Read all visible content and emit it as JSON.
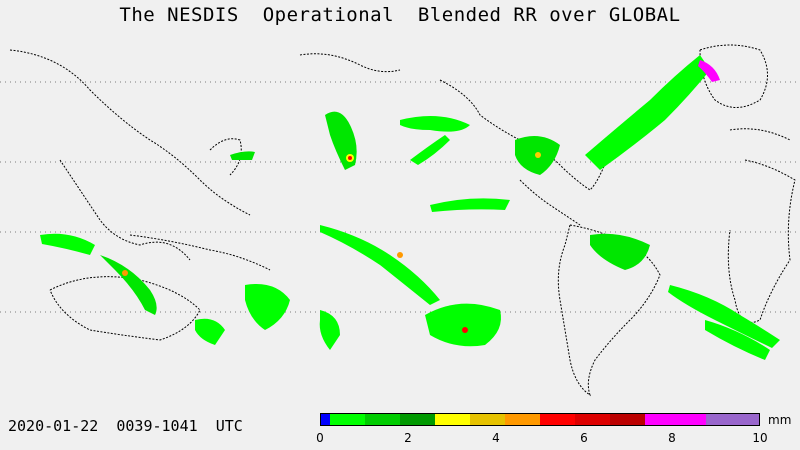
{
  "title": "The NESDIS  Operational  Blended RR over GLOBAL",
  "timestamp": "2020-01-22  0039-1041  UTC",
  "legend": {
    "unit": "mm",
    "ticks": [
      "0",
      "2",
      "4",
      "6",
      "8",
      "10"
    ],
    "tick_values": [
      0,
      2,
      4,
      6,
      8,
      10
    ],
    "range": [
      0,
      10
    ],
    "colors": [
      "#0000ff",
      "#00ff00",
      "#00cc00",
      "#009900",
      "#ffff00",
      "#e6c200",
      "#ff9900",
      "#ff0000",
      "#dd0000",
      "#bb0000",
      "#ff00ff",
      "#9966cc"
    ],
    "bounds": [
      0,
      0.2,
      1,
      1.8,
      2.6,
      3.4,
      4.2,
      5,
      5.8,
      6.6,
      7.4,
      8.8,
      10
    ]
  },
  "map": {
    "background": "#f0f0f0",
    "coastline_color": "#000000"
  }
}
